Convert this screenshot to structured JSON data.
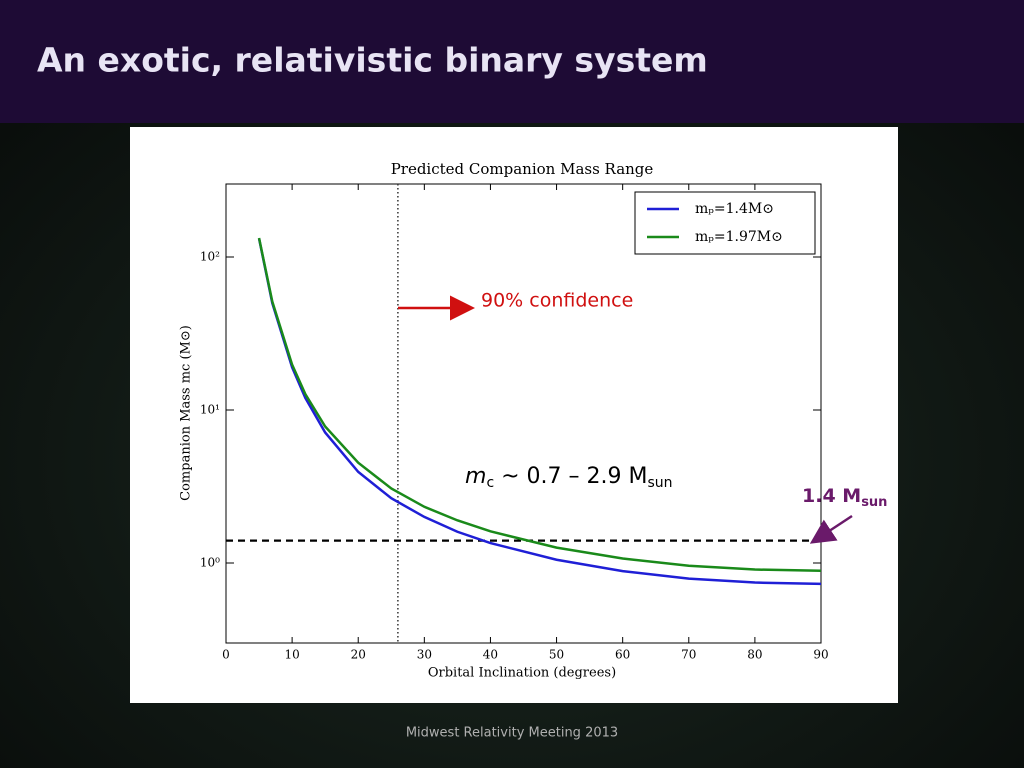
{
  "slide": {
    "title": "An exotic, relativistic binary system",
    "footer": "Midwest Relativity Meeting 2013"
  },
  "chart_data": {
    "type": "line",
    "title": "Predicted Companion Mass Range",
    "x_label": "Orbital Inclination (degrees)",
    "y_label": "Companion Mass mc (M⊙)",
    "x": [
      5,
      7,
      10,
      12,
      15,
      20,
      25,
      30,
      35,
      40,
      50,
      60,
      70,
      80,
      90
    ],
    "series": [
      {
        "name": "mₚ=1.4M⊙",
        "color": "#1f1fd6",
        "values": [
          132,
          50,
          19,
          12,
          7.13,
          3.94,
          2.65,
          2.0,
          1.6,
          1.35,
          1.05,
          0.885,
          0.79,
          0.745,
          0.73
        ]
      },
      {
        "name": "mₚ=1.97M⊙",
        "color": "#1a8a1a",
        "values": [
          133,
          51.2,
          19.8,
          12.7,
          7.8,
          4.52,
          3.07,
          2.33,
          1.9,
          1.61,
          1.26,
          1.07,
          0.96,
          0.906,
          0.89
        ]
      }
    ],
    "xlim": [
      0,
      90
    ],
    "xticks": [
      0,
      10,
      20,
      30,
      40,
      50,
      60,
      70,
      80,
      90
    ],
    "ylim": [
      0.3,
      300
    ],
    "y_scale": "log",
    "yticks": [
      {
        "value": 1,
        "label": "10⁰"
      },
      {
        "value": 10,
        "label": "10¹"
      },
      {
        "value": 100,
        "label": "10²"
      }
    ],
    "legend": "upper right",
    "confidence_x": 26,
    "reference_mass": 1.4,
    "confidence_label": "90% confidence",
    "range_label": [
      "m",
      "c",
      " ~ 0.7 – 2.9  M",
      "sun"
    ],
    "mass_label": [
      "1.4 M",
      "sun"
    ]
  }
}
